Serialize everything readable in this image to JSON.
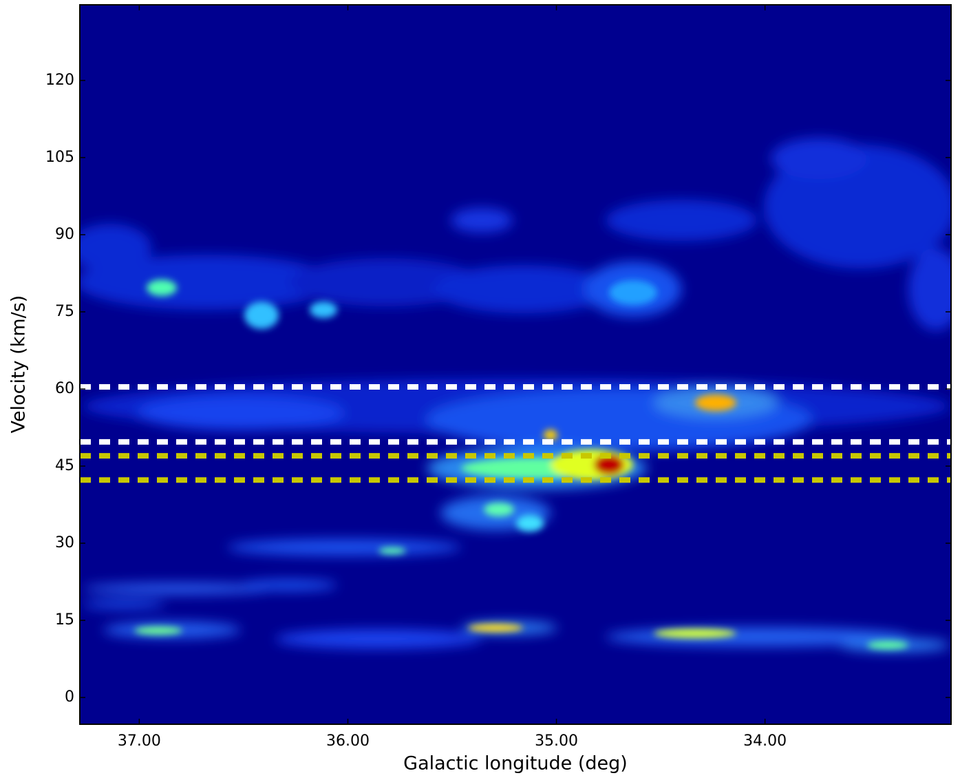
{
  "chart_data": {
    "type": "heatmap",
    "xlabel": "Galactic longitude (deg)",
    "ylabel": "Velocity (km/s)",
    "xlim": [
      37.285,
      33.108
    ],
    "ylim": [
      -5.2,
      134.7
    ],
    "xticks": [
      {
        "value": 37,
        "label": "37.00"
      },
      {
        "value": 36,
        "label": "36.00"
      },
      {
        "value": 35,
        "label": "35.00"
      },
      {
        "value": 34,
        "label": "34.00"
      }
    ],
    "yticks": [
      0,
      15,
      30,
      45,
      60,
      75,
      90,
      105,
      120
    ],
    "background": "#00008f",
    "hlines": [
      {
        "value": 60.4,
        "color": "#ffffff"
      },
      {
        "value": 49.7,
        "color": "#ffffff"
      },
      {
        "value": 47.0,
        "color": "#c8c800"
      },
      {
        "value": 42.3,
        "color": "#c8c800"
      }
    ]
  }
}
